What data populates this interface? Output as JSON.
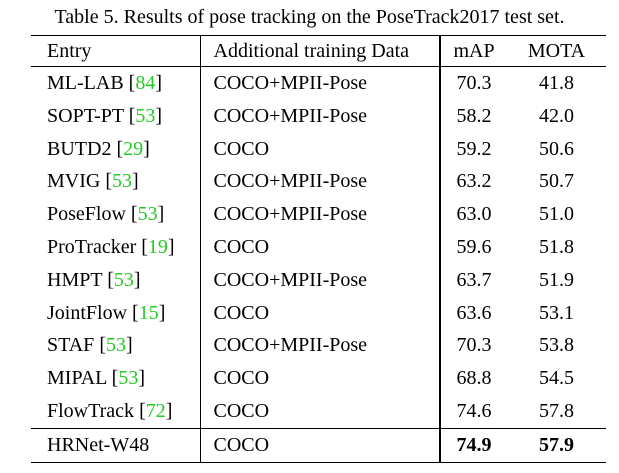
{
  "caption": "Table 5. Results of pose tracking on the PoseTrack2017 test set.",
  "headers": {
    "entry": "Entry",
    "data": "Additional training Data",
    "map": "mAP",
    "mota": "MOTA"
  },
  "rows": [
    {
      "name": "ML-LAB",
      "ref": "84",
      "data": "COCO+MPII-Pose",
      "map": "70.3",
      "mota": "41.8"
    },
    {
      "name": "SOPT-PT",
      "ref": "53",
      "data": "COCO+MPII-Pose",
      "map": "58.2",
      "mota": "42.0"
    },
    {
      "name": "BUTD2",
      "ref": "29",
      "data": "COCO",
      "map": "59.2",
      "mota": "50.6"
    },
    {
      "name": "MVIG",
      "ref": "53",
      "data": "COCO+MPII-Pose",
      "map": "63.2",
      "mota": "50.7"
    },
    {
      "name": "PoseFlow",
      "ref": "53",
      "data": "COCO+MPII-Pose",
      "map": "63.0",
      "mota": "51.0"
    },
    {
      "name": "ProTracker",
      "ref": "19",
      "data": "COCO",
      "map": "59.6",
      "mota": "51.8"
    },
    {
      "name": "HMPT",
      "ref": "53",
      "data": "COCO+MPII-Pose",
      "map": "63.7",
      "mota": "51.9"
    },
    {
      "name": "JointFlow",
      "ref": "15",
      "data": "COCO",
      "map": "63.6",
      "mota": "53.1"
    },
    {
      "name": "STAF",
      "ref": "53",
      "data": "COCO+MPII-Pose",
      "map": "70.3",
      "mota": "53.8"
    },
    {
      "name": "MIPAL",
      "ref": "53",
      "data": "COCO",
      "map": "68.8",
      "mota": "54.5"
    },
    {
      "name": "FlowTrack",
      "ref": "72",
      "data": "COCO",
      "map": "74.6",
      "mota": "57.8"
    }
  ],
  "final_row": {
    "name": "HRNet-W48",
    "data": "COCO",
    "map": "74.9",
    "mota": "57.9"
  },
  "colors": {
    "citation": "#22cc22"
  }
}
